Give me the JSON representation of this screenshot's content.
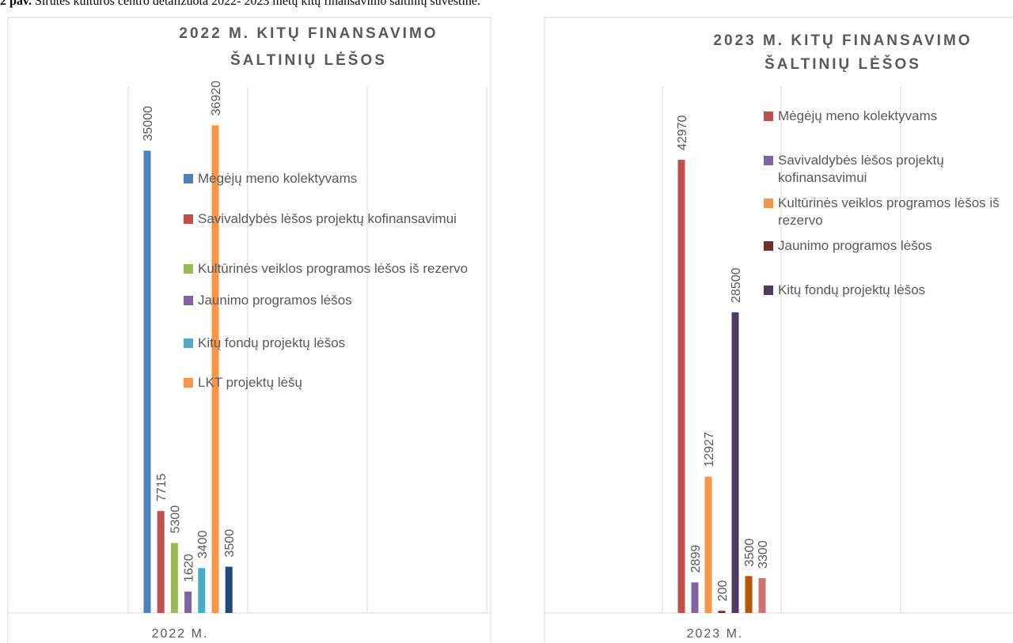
{
  "caption": {
    "label": "2 pav.",
    "text": "Sirutės kultūros centro detalizuota 2022- 2023 metų kitų finansavimo šaltinių suvestinė."
  },
  "chart_data": [
    {
      "type": "bar",
      "title": [
        "2022 M.  KITŲ FINANSAVIMO",
        "ŠALTINIŲ LĖŠOS"
      ],
      "categories": [
        "2022 M."
      ],
      "ylim": [
        0,
        40000
      ],
      "series": [
        {
          "name": "Mėgėjų meno kolektyvams",
          "color": "#4f81bd",
          "values": [
            35000
          ]
        },
        {
          "name": "Savivaldybės lėšos projektų kofinansavimui",
          "color": "#c0504d",
          "values": [
            7715
          ]
        },
        {
          "name": "Kultūrinės veiklos programos lėšos iš rezervo",
          "color": "#9bbb59",
          "values": [
            5300
          ]
        },
        {
          "name": "Jaunimo programos lėšos",
          "color": "#8064a2",
          "values": [
            1620
          ]
        },
        {
          "name": "Kitų fondų projektų lėšos",
          "color": "#4bacc6",
          "values": [
            3400
          ]
        },
        {
          "name": "LKT projektų lėšų",
          "color": "#f79646",
          "values": [
            36920
          ]
        },
        {
          "color": "#1f497d",
          "values": [
            3500
          ]
        }
      ]
    },
    {
      "type": "bar",
      "title": [
        "2023 M.  KITŲ FINANSAVIMO",
        "ŠALTINIŲ LĖŠOS"
      ],
      "categories": [
        "2023 M."
      ],
      "ylim": [
        0,
        48000
      ],
      "series": [
        {
          "name": "Mėgėjų meno kolektyvams",
          "color": "#c0504d",
          "values": [
            42970
          ]
        },
        {
          "name": "Savivaldybės lėšos projektų kofinansavimui",
          "color": "#8064a2",
          "values": [
            2899
          ]
        },
        {
          "name": "Kultūrinės veiklos programos lėšos iš rezervo",
          "color": "#f79646",
          "values": [
            12927
          ]
        },
        {
          "name": "Jaunimo programos lėšos",
          "color": "#772c2a",
          "values": [
            200
          ]
        },
        {
          "name": "Kitų fondų projektų lėšos",
          "color": "#4d3b62",
          "values": [
            28500
          ]
        },
        {
          "color": "#b65708",
          "values": [
            3500
          ]
        },
        {
          "color": "#cd7371",
          "values": [
            3300
          ]
        }
      ]
    }
  ]
}
